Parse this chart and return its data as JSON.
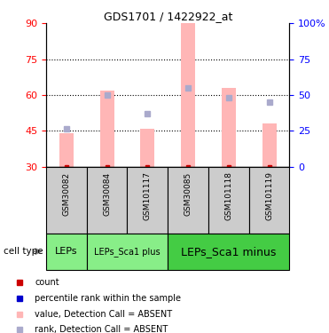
{
  "title": "GDS1701 / 1422922_at",
  "samples": [
    "GSM30082",
    "GSM30084",
    "GSM101117",
    "GSM30085",
    "GSM101118",
    "GSM101119"
  ],
  "bar_tops": [
    44,
    62,
    46,
    90,
    63,
    48
  ],
  "bar_bottom": 30,
  "rank_values": [
    46,
    60,
    52,
    63,
    59,
    57
  ],
  "ylim": [
    30,
    90
  ],
  "yticks_left": [
    30,
    45,
    60,
    75,
    90
  ],
  "right_tick_positions": [
    30,
    45,
    60,
    75,
    90
  ],
  "right_tick_labels": [
    "0",
    "25",
    "50",
    "75",
    "100%"
  ],
  "hgrid_lines": [
    45,
    60,
    75
  ],
  "bar_color": "#FFB6B6",
  "rank_color": "#AAAACC",
  "dot_red_color": "#CC0000",
  "cell_groups": [
    {
      "label": "LEPs",
      "start": 0,
      "end": 1,
      "color": "#88EE88"
    },
    {
      "label": "LEPs_Sca1 plus",
      "start": 1,
      "end": 3,
      "color": "#88EE88"
    },
    {
      "label": "LEPs_Sca1 minus",
      "start": 3,
      "end": 6,
      "color": "#44CC44"
    }
  ],
  "legend_colors": [
    "#CC0000",
    "#0000CC",
    "#FFB6B6",
    "#AAAACC"
  ],
  "legend_labels": [
    "count",
    "percentile rank within the sample",
    "value, Detection Call = ABSENT",
    "rank, Detection Call = ABSENT"
  ],
  "sample_box_color": "#CCCCCC",
  "cell_type_label": "cell type"
}
